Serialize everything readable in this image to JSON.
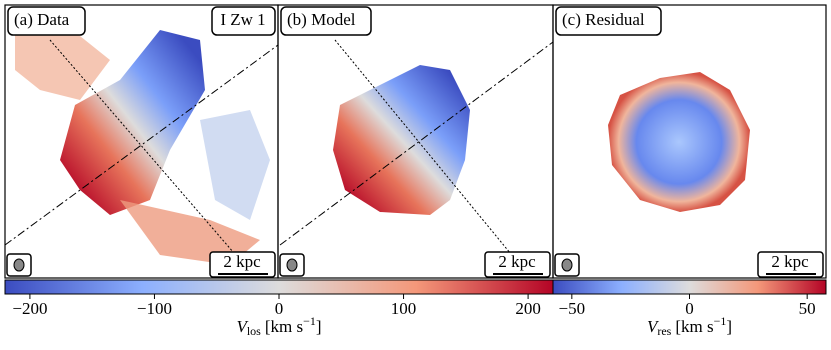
{
  "panels": [
    {
      "label": "(a) Data",
      "object": "I Zw 1",
      "scale": "2 kpc"
    },
    {
      "label": "(b) Model",
      "scale": "2 kpc"
    },
    {
      "label": "(c) Residual",
      "scale": "2 kpc"
    }
  ],
  "colorbars": [
    {
      "label": {
        "symbol": "V",
        "sub": "los",
        "unit": "[km s",
        "sup": "−1",
        "close": "]"
      },
      "xlim": [
        -220,
        220
      ],
      "xticks": [
        {
          "value": -200,
          "label": "−200"
        },
        {
          "value": -100,
          "label": "−100"
        },
        0,
        100,
        200
      ]
    },
    {
      "label": {
        "symbol": "V",
        "sub": "res",
        "unit": "[km s",
        "sup": "−1",
        "close": "]"
      },
      "xlim": [
        -58,
        58
      ],
      "xticks": [
        {
          "value": -50,
          "label": "−50"
        },
        0,
        50
      ]
    }
  ]
}
